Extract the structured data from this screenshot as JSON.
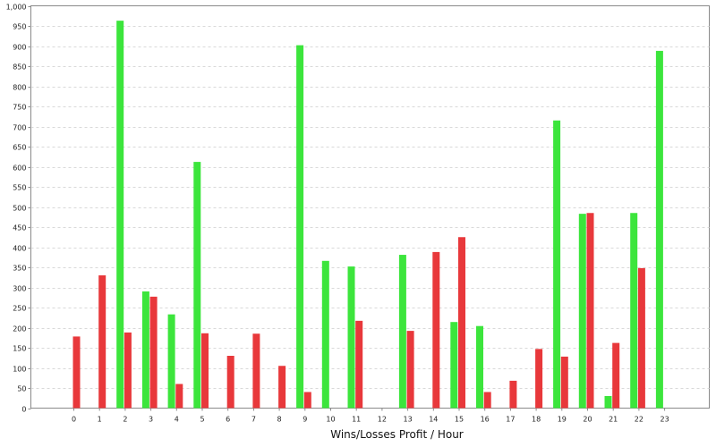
{
  "chart_data": {
    "type": "bar",
    "title": "",
    "xlabel": "Wins/Losses Profit / Hour",
    "ylabel": "",
    "ylim": [
      0,
      1000
    ],
    "yticks": [
      0,
      50,
      100,
      150,
      200,
      250,
      300,
      350,
      400,
      450,
      500,
      550,
      600,
      650,
      700,
      750,
      800,
      850,
      900,
      950,
      1000
    ],
    "ytick_labels": [
      "0",
      "50",
      "100",
      "150",
      "200",
      "250",
      "300",
      "350",
      "400",
      "450",
      "500",
      "550",
      "600",
      "650",
      "700",
      "750",
      "800",
      "850",
      "900",
      "950",
      "1,000"
    ],
    "categories": [
      "0",
      "1",
      "2",
      "3",
      "4",
      "5",
      "6",
      "7",
      "8",
      "9",
      "10",
      "11",
      "12",
      "13",
      "14",
      "15",
      "16",
      "17",
      "18",
      "19",
      "20",
      "21",
      "22",
      "23"
    ],
    "grid": true,
    "legend": "none",
    "series": [
      {
        "color": "#e8383b",
        "values": [
          178,
          330,
          188,
          277,
          60,
          186,
          130,
          185,
          105,
          40,
          0,
          217,
          0,
          192,
          388,
          425,
          40,
          68,
          147,
          128,
          485,
          162,
          348,
          0
        ]
      },
      {
        "color": "#3ce53c",
        "values": [
          0,
          963,
          290,
          233,
          612,
          0,
          0,
          0,
          902,
          366,
          352,
          0,
          381,
          0,
          214,
          204,
          0,
          0,
          715,
          483,
          30,
          485,
          888,
          0
        ]
      }
    ]
  }
}
